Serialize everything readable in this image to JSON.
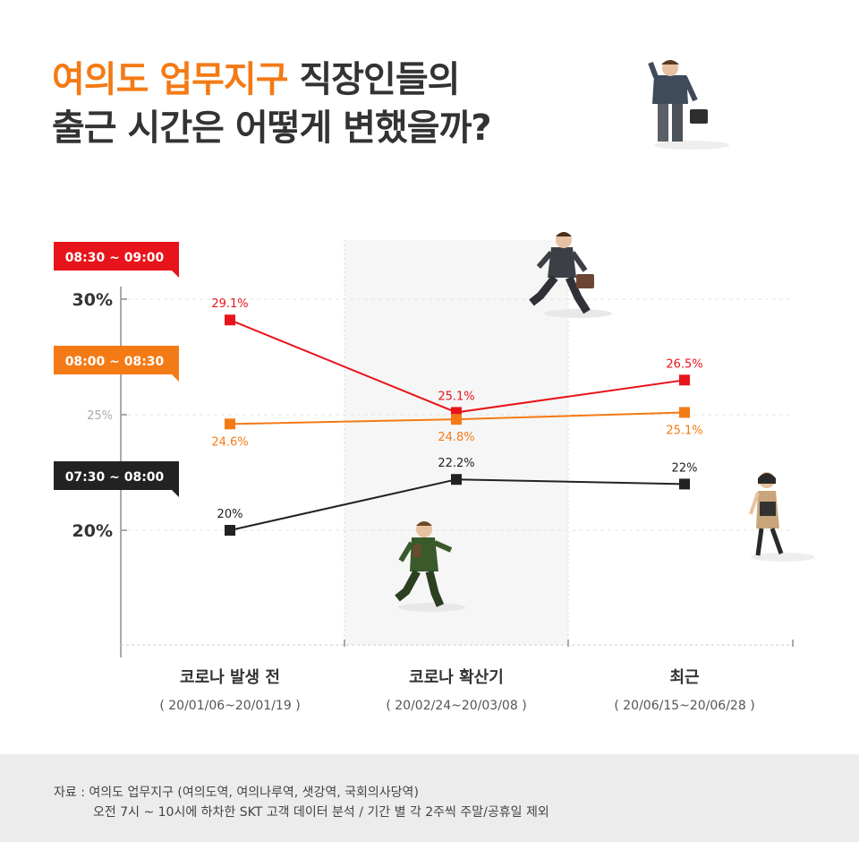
{
  "title": {
    "accent": "여의도 업무지구",
    "line1_rest": " 직장인들의",
    "line2": "출근 시간은 어떻게 변했을까?"
  },
  "colors": {
    "red": "#e8141b",
    "orange": "#f47a15",
    "black": "#222222",
    "shade": "#f6f6f6"
  },
  "chart_data": {
    "type": "line",
    "categories": [
      "코로나 발생 전",
      "코로나 확산기",
      "최근"
    ],
    "category_dates": [
      "( 20/01/06~20/01/19 )",
      "( 20/02/24~20/03/08 )",
      "( 20/06/15~20/06/28 )"
    ],
    "y_ticks": [
      "30%",
      "25%",
      "20%"
    ],
    "ylim": [
      15,
      30
    ],
    "series": [
      {
        "name": "08:30 ~ 09:00",
        "color": "#e8141b",
        "values": [
          29.1,
          25.1,
          26.5
        ],
        "labels": [
          "29.1%",
          "25.1%",
          "26.5%"
        ]
      },
      {
        "name": "08:00 ~ 08:30",
        "color": "#f47a15",
        "values": [
          24.6,
          24.8,
          25.1
        ],
        "labels": [
          "24.6%",
          "24.8%",
          "25.1%"
        ]
      },
      {
        "name": "07:30 ~ 08:00",
        "color": "#222222",
        "values": [
          20,
          22.2,
          22
        ],
        "labels": [
          "20%",
          "22.2%",
          "22%"
        ]
      }
    ],
    "highlight_category": 1,
    "grid": true
  },
  "source": {
    "line1": "자료 : 여의도 업무지구 (여의도역, 여의나루역, 샛강역, 국회의사당역)",
    "line2": "오전 7시 ~ 10시에 하차한 SKT 고객 데이터 분석 / 기간 별 각 2주씩 주말/공휴일 제외"
  }
}
